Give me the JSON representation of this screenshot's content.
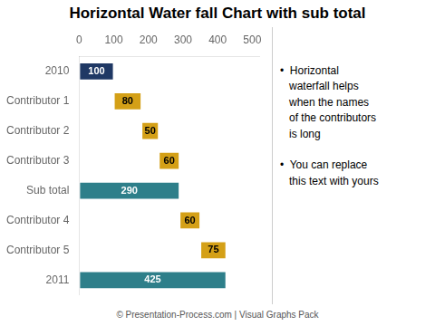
{
  "chart_data": {
    "type": "bar",
    "orientation": "horizontal",
    "title": "Horizontal Water fall Chart with sub total",
    "categories": [
      "2010",
      "Contributor 1",
      "Contributor 2",
      "Contributor 3",
      "Sub total",
      "Contributor 4",
      "Contributor 5",
      "2011"
    ],
    "values": [
      100,
      80,
      50,
      60,
      290,
      60,
      75,
      425
    ],
    "offsets": [
      0,
      100,
      180,
      230,
      0,
      290,
      350,
      0
    ],
    "colors": [
      "#1f3864",
      "#d4a017",
      "#d4a017",
      "#d4a017",
      "#2e7f8a",
      "#d4a017",
      "#d4a017",
      "#2e7f8a"
    ],
    "xlim": [
      0,
      520
    ],
    "xticks": [
      0,
      100,
      200,
      300,
      400,
      500
    ],
    "grid": false,
    "data_labels": true,
    "annotations": [
      "•  Horizontal",
      "   waterfall helps",
      "   when the names",
      "   of the contributors",
      "   is long",
      "•  You can replace",
      "   this text with yours"
    ],
    "footer": "© Presentation-Process.com | Visual Graphs Pack"
  }
}
